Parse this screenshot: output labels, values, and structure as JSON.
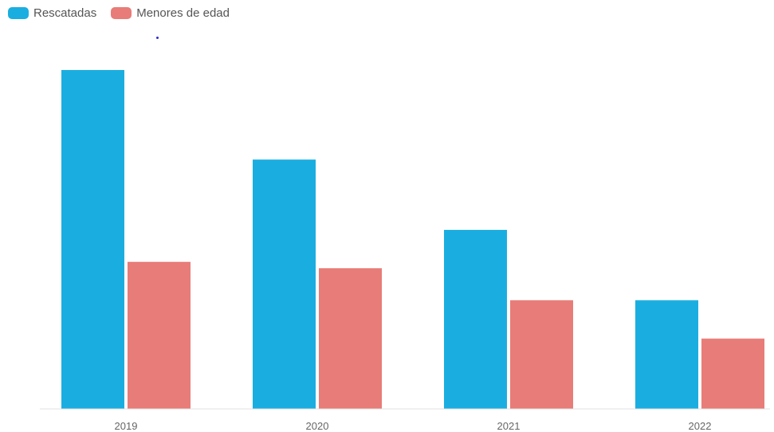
{
  "chart_data": {
    "type": "bar",
    "categories": [
      "2019",
      "2020",
      "2021",
      "2022"
    ],
    "series": [
      {
        "name": "Rescatadas",
        "values": [
          106,
          78,
          56,
          34
        ],
        "color": "#1aaee0"
      },
      {
        "name": "Menores de edad",
        "values": [
          46,
          44,
          34,
          22
        ],
        "color": "#e87c78"
      }
    ],
    "ylim": [
      0,
      108
    ],
    "grid": false,
    "legend_position": "top-left"
  }
}
